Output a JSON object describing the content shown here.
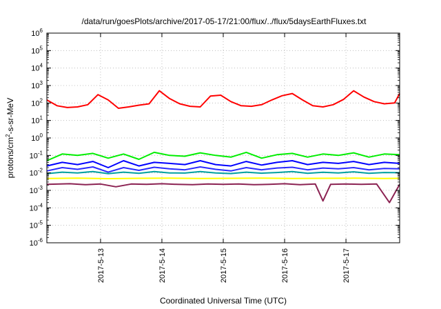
{
  "chart_data": {
    "type": "line",
    "title": "/data/run/goesPlots/archive/2017-05-17/21:00/flux/../flux/5daysEarthFluxes.txt",
    "xlabel": "Coordinated Universal Time (UTC)",
    "ylabel": "protons/cm2-s-sr-MeV",
    "ylabel_parts": {
      "base": "protons/cm",
      "sup": "2",
      "rest": "-s-sr-MeV"
    },
    "yscale": "log",
    "ylim": [
      1e-06,
      1000000.0
    ],
    "xlim": [
      "2017-05-12 03:00",
      "2017-05-17 21:00"
    ],
    "grid": true,
    "y_ticks": [
      {
        "base": "10",
        "exp": "-6"
      },
      {
        "base": "10",
        "exp": "-5"
      },
      {
        "base": "10",
        "exp": "-4"
      },
      {
        "base": "10",
        "exp": "-3"
      },
      {
        "base": "10",
        "exp": "-2"
      },
      {
        "base": "10",
        "exp": "-1"
      },
      {
        "base": "10",
        "exp": "0"
      },
      {
        "base": "10",
        "exp": "1"
      },
      {
        "base": "10",
        "exp": "2"
      },
      {
        "base": "10",
        "exp": "3"
      },
      {
        "base": "10",
        "exp": "4"
      },
      {
        "base": "10",
        "exp": "5"
      },
      {
        "base": "10",
        "exp": "6"
      }
    ],
    "x_ticks": [
      {
        "label": "2017-5-13",
        "x": "2017-05-13 00:00"
      },
      {
        "label": "2017-5-14",
        "x": "2017-05-14 00:00"
      },
      {
        "label": "2017-5-15",
        "x": "2017-05-15 00:00"
      },
      {
        "label": "2017-5-16",
        "x": "2017-05-16 00:00"
      },
      {
        "label": "2017-5-17",
        "x": "2017-05-17 00:00"
      }
    ],
    "series": [
      {
        "color": "#ff0000",
        "x": [
          "2017-05-12 03:00",
          "2017-05-12 07:00",
          "2017-05-12 11:00",
          "2017-05-12 15:00",
          "2017-05-12 19:00",
          "2017-05-12 23:00",
          "2017-05-13 03:00",
          "2017-05-13 07:00",
          "2017-05-13 11:00",
          "2017-05-13 15:00",
          "2017-05-13 19:00",
          "2017-05-13 23:00",
          "2017-05-14 03:00",
          "2017-05-14 07:00",
          "2017-05-14 11:00",
          "2017-05-14 15:00",
          "2017-05-14 19:00",
          "2017-05-14 23:00",
          "2017-05-15 03:00",
          "2017-05-15 07:00",
          "2017-05-15 11:00",
          "2017-05-15 15:00",
          "2017-05-15 19:00",
          "2017-05-15 23:00",
          "2017-05-16 03:00",
          "2017-05-16 07:00",
          "2017-05-16 11:00",
          "2017-05-16 15:00",
          "2017-05-16 19:00",
          "2017-05-16 23:00",
          "2017-05-17 03:00",
          "2017-05-17 07:00",
          "2017-05-17 11:00",
          "2017-05-17 15:00",
          "2017-05-17 19:00",
          "2017-05-17 21:00"
        ],
        "values": [
          150,
          70,
          55,
          60,
          80,
          300,
          150,
          50,
          60,
          75,
          90,
          500,
          180,
          90,
          65,
          60,
          250,
          280,
          120,
          70,
          65,
          80,
          150,
          260,
          350,
          150,
          70,
          60,
          80,
          160,
          500,
          220,
          120,
          90,
          100,
          350
        ]
      },
      {
        "color": "#00ee00",
        "x": [
          "2017-05-12 03:00",
          "2017-05-12 09:00",
          "2017-05-12 15:00",
          "2017-05-12 21:00",
          "2017-05-13 03:00",
          "2017-05-13 09:00",
          "2017-05-13 15:00",
          "2017-05-13 21:00",
          "2017-05-14 03:00",
          "2017-05-14 09:00",
          "2017-05-14 15:00",
          "2017-05-14 21:00",
          "2017-05-15 03:00",
          "2017-05-15 09:00",
          "2017-05-15 15:00",
          "2017-05-15 21:00",
          "2017-05-16 03:00",
          "2017-05-16 09:00",
          "2017-05-16 15:00",
          "2017-05-16 21:00",
          "2017-05-17 03:00",
          "2017-05-17 09:00",
          "2017-05-17 15:00",
          "2017-05-17 21:00"
        ],
        "values": [
          0.05,
          0.12,
          0.1,
          0.13,
          0.07,
          0.12,
          0.06,
          0.15,
          0.1,
          0.09,
          0.14,
          0.1,
          0.08,
          0.15,
          0.07,
          0.11,
          0.13,
          0.08,
          0.12,
          0.1,
          0.14,
          0.08,
          0.12,
          0.11
        ]
      },
      {
        "color": "#0000ff",
        "x": [
          "2017-05-12 03:00",
          "2017-05-12 09:00",
          "2017-05-12 15:00",
          "2017-05-12 21:00",
          "2017-05-13 03:00",
          "2017-05-13 09:00",
          "2017-05-13 15:00",
          "2017-05-13 21:00",
          "2017-05-14 03:00",
          "2017-05-14 09:00",
          "2017-05-14 15:00",
          "2017-05-14 21:00",
          "2017-05-15 03:00",
          "2017-05-15 09:00",
          "2017-05-15 15:00",
          "2017-05-15 21:00",
          "2017-05-16 03:00",
          "2017-05-16 09:00",
          "2017-05-16 15:00",
          "2017-05-16 21:00",
          "2017-05-17 03:00",
          "2017-05-17 09:00",
          "2017-05-17 15:00",
          "2017-05-17 21:00"
        ],
        "values": [
          0.025,
          0.04,
          0.03,
          0.045,
          0.02,
          0.05,
          0.025,
          0.04,
          0.035,
          0.03,
          0.05,
          0.03,
          0.025,
          0.045,
          0.028,
          0.04,
          0.05,
          0.03,
          0.04,
          0.035,
          0.045,
          0.03,
          0.04,
          0.035
        ]
      },
      {
        "color": "#2a2aff",
        "x": [
          "2017-05-12 03:00",
          "2017-05-12 09:00",
          "2017-05-12 15:00",
          "2017-05-12 21:00",
          "2017-05-13 03:00",
          "2017-05-13 09:00",
          "2017-05-13 15:00",
          "2017-05-13 21:00",
          "2017-05-14 03:00",
          "2017-05-14 09:00",
          "2017-05-14 15:00",
          "2017-05-14 21:00",
          "2017-05-15 03:00",
          "2017-05-15 09:00",
          "2017-05-15 15:00",
          "2017-05-15 21:00",
          "2017-05-16 03:00",
          "2017-05-16 09:00",
          "2017-05-16 15:00",
          "2017-05-16 21:00",
          "2017-05-17 03:00",
          "2017-05-17 09:00",
          "2017-05-17 15:00",
          "2017-05-17 21:00"
        ],
        "values": [
          0.013,
          0.02,
          0.016,
          0.022,
          0.011,
          0.02,
          0.014,
          0.021,
          0.017,
          0.015,
          0.022,
          0.016,
          0.013,
          0.02,
          0.015,
          0.019,
          0.021,
          0.015,
          0.019,
          0.017,
          0.02,
          0.015,
          0.018,
          0.017
        ]
      },
      {
        "color": "#00a0a0",
        "x": [
          "2017-05-12 03:00",
          "2017-05-12 09:00",
          "2017-05-12 15:00",
          "2017-05-12 21:00",
          "2017-05-13 03:00",
          "2017-05-13 09:00",
          "2017-05-13 15:00",
          "2017-05-13 21:00",
          "2017-05-14 03:00",
          "2017-05-14 09:00",
          "2017-05-14 15:00",
          "2017-05-14 21:00",
          "2017-05-15 03:00",
          "2017-05-15 09:00",
          "2017-05-15 15:00",
          "2017-05-15 21:00",
          "2017-05-16 03:00",
          "2017-05-16 09:00",
          "2017-05-16 15:00",
          "2017-05-16 21:00",
          "2017-05-17 03:00",
          "2017-05-17 09:00",
          "2017-05-17 15:00",
          "2017-05-17 21:00"
        ],
        "values": [
          0.009,
          0.011,
          0.01,
          0.012,
          0.009,
          0.011,
          0.0095,
          0.012,
          0.01,
          0.0098,
          0.012,
          0.01,
          0.0092,
          0.011,
          0.0096,
          0.0105,
          0.012,
          0.0095,
          0.0108,
          0.01,
          0.0115,
          0.0095,
          0.0105,
          0.0102
        ]
      },
      {
        "color": "#ffff00",
        "x": [
          "2017-05-12 03:00",
          "2017-05-12 15:00",
          "2017-05-13 03:00",
          "2017-05-13 15:00",
          "2017-05-14 03:00",
          "2017-05-14 15:00",
          "2017-05-15 03:00",
          "2017-05-15 15:00",
          "2017-05-16 03:00",
          "2017-05-16 15:00",
          "2017-05-17 03:00",
          "2017-05-17 15:00",
          "2017-05-17 21:00"
        ],
        "values": [
          0.0048,
          0.005,
          0.0047,
          0.0049,
          0.005,
          0.0048,
          0.0049,
          0.005,
          0.0048,
          0.0049,
          0.005,
          0.0048,
          0.0049
        ]
      },
      {
        "color": "#8b2252",
        "x": [
          "2017-05-12 03:00",
          "2017-05-12 12:00",
          "2017-05-12 18:00",
          "2017-05-13 00:00",
          "2017-05-13 06:00",
          "2017-05-13 12:00",
          "2017-05-13 18:00",
          "2017-05-14 00:00",
          "2017-05-14 06:00",
          "2017-05-14 12:00",
          "2017-05-14 18:00",
          "2017-05-15 00:00",
          "2017-05-15 06:00",
          "2017-05-15 12:00",
          "2017-05-15 18:00",
          "2017-05-16 00:00",
          "2017-05-16 06:00",
          "2017-05-16 12:00",
          "2017-05-16 15:00",
          "2017-05-16 18:00",
          "2017-05-17 00:00",
          "2017-05-17 06:00",
          "2017-05-17 12:00",
          "2017-05-17 17:00",
          "2017-05-17 21:00"
        ],
        "values": [
          0.0022,
          0.0024,
          0.0021,
          0.0023,
          0.0016,
          0.0023,
          0.0022,
          0.0024,
          0.0022,
          0.0021,
          0.0023,
          0.0022,
          0.0023,
          0.0021,
          0.0022,
          0.0024,
          0.0021,
          0.0023,
          0.00025,
          0.0022,
          0.0023,
          0.0022,
          0.0023,
          0.0002,
          0.0022
        ]
      }
    ]
  }
}
